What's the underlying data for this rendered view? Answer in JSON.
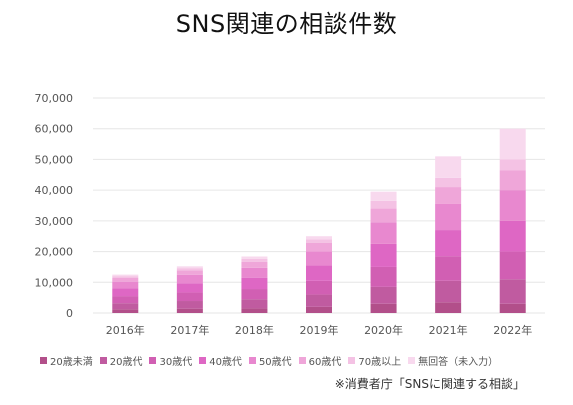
{
  "chart_data": {
    "type": "bar",
    "stacked": true,
    "title": "SNS関連の相談件数",
    "categories": [
      "2016年",
      "2017年",
      "2018年",
      "2019年",
      "2020年",
      "2021年",
      "2022年"
    ],
    "y_ticks": [
      "0",
      "10,000",
      "20,000",
      "30,000",
      "40,000",
      "50,000",
      "60,000",
      "70,000"
    ],
    "ylim": [
      0,
      70000
    ],
    "grid": true,
    "legend_position": "bottom",
    "series": [
      {
        "name": "20歳未満",
        "color": "#b24f8a",
        "values": [
          1200,
          1400,
          1500,
          2000,
          3000,
          3500,
          3000
        ]
      },
      {
        "name": "20歳代",
        "color": "#c05ba0",
        "values": [
          2000,
          2500,
          3000,
          4000,
          5500,
          7000,
          8000
        ]
      },
      {
        "name": "30歳代",
        "color": "#d15fb3",
        "values": [
          2300,
          2800,
          3300,
          4500,
          6500,
          8000,
          9000
        ]
      },
      {
        "name": "40歳代",
        "color": "#de67c4",
        "values": [
          2500,
          3000,
          3700,
          5000,
          7500,
          8500,
          10000
        ]
      },
      {
        "name": "50歳代",
        "color": "#e888cf",
        "values": [
          2200,
          2700,
          3200,
          4500,
          7000,
          8500,
          10000
        ]
      },
      {
        "name": "60歳代",
        "color": "#efa6d9",
        "values": [
          1200,
          1500,
          2000,
          2800,
          4500,
          5500,
          6500
        ]
      },
      {
        "name": "70歳以上",
        "color": "#f4c2e4",
        "values": [
          600,
          700,
          900,
          1200,
          2500,
          3000,
          3500
        ]
      },
      {
        "name": "無回答（未入力）",
        "color": "#f8d9ee",
        "values": [
          500,
          600,
          800,
          1000,
          3000,
          7000,
          10000
        ]
      }
    ],
    "source": "※消費者庁「SNSに関連する相談」"
  }
}
